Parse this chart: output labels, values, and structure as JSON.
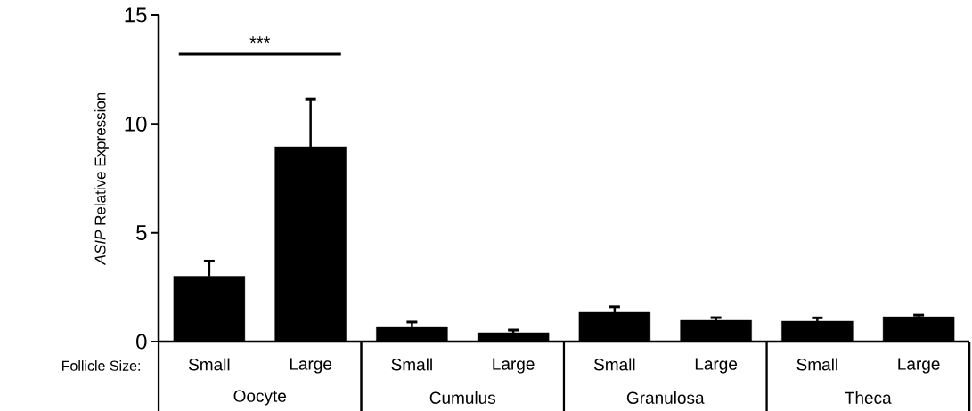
{
  "chart_data": {
    "type": "bar",
    "ylabel": "*ASIP* Relative Expression",
    "xlabel": "Follicle Size:",
    "categories": [
      "Small",
      "Large",
      "Small",
      "Large",
      "Small",
      "Large",
      "Small",
      "Large"
    ],
    "values": [
      3.0,
      8.95,
      0.65,
      0.41,
      1.35,
      0.98,
      0.94,
      1.14
    ],
    "errors": [
      0.7,
      2.2,
      0.25,
      0.12,
      0.25,
      0.12,
      0.15,
      0.08
    ],
    "color": "#000000",
    "ylim": [
      0,
      15
    ],
    "yticks": [
      0,
      5,
      10,
      15
    ],
    "annotations": [
      "***",
      "Oocyte",
      "Cumulus",
      "Granulosa",
      "Theca"
    ]
  }
}
